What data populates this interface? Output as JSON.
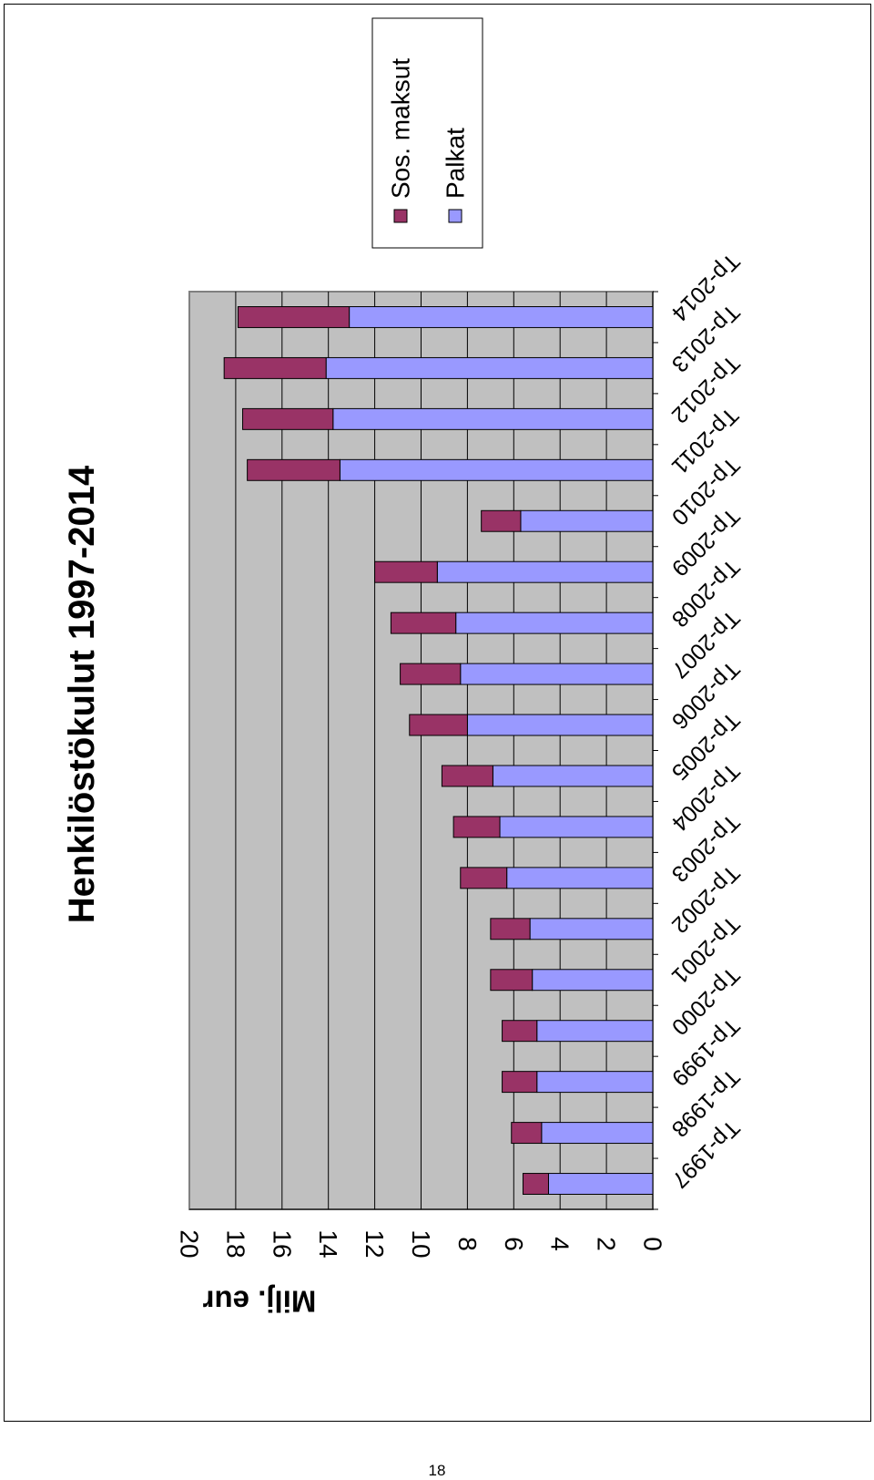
{
  "chart_data": {
    "type": "bar",
    "stacked": true,
    "orientation": "vertical (page rotated 90°)",
    "title": "Henkilöstökulut 1997-2014",
    "ylabel": "Milj. eur",
    "xlabel": "",
    "categories": [
      "Tp-1997",
      "Tp-1998",
      "Tp-1999",
      "Tp-2000",
      "Tp-2001",
      "Tp-2002",
      "Tp-2003",
      "Tp-2004",
      "Tp-2005",
      "Tp-2006",
      "Tp-2007",
      "Tp-2008",
      "Tp-2009",
      "Tp-2010",
      "Tp-2011",
      "Tp-2012",
      "Tp-2013",
      "Tp-2014"
    ],
    "series": [
      {
        "name": "Palkat",
        "color": "#9999ff",
        "values": [
          4.5,
          4.8,
          5.0,
          5.0,
          5.2,
          5.3,
          6.3,
          6.6,
          6.9,
          8.0,
          8.3,
          8.5,
          9.3,
          5.7,
          13.5,
          13.8,
          14.1,
          13.1
        ]
      },
      {
        "name": "Sos. maksut",
        "color": "#993366",
        "values": [
          1.1,
          1.3,
          1.5,
          1.5,
          1.8,
          1.7,
          2.0,
          2.0,
          2.2,
          2.5,
          2.6,
          2.8,
          2.7,
          1.7,
          4.0,
          3.9,
          4.4,
          4.8
        ]
      }
    ],
    "ylim": [
      0,
      20
    ],
    "yticks": [
      0,
      2,
      4,
      6,
      8,
      10,
      12,
      14,
      16,
      18,
      20
    ],
    "grid": true,
    "plot_background": "#c0c0c0",
    "legend": {
      "placement": "right",
      "items": [
        "Sos. maksut",
        "Palkat"
      ]
    }
  },
  "page_number": "18"
}
